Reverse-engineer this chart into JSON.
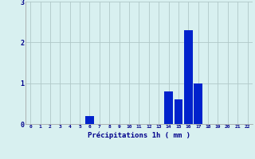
{
  "hours": [
    0,
    1,
    2,
    3,
    4,
    5,
    6,
    7,
    8,
    9,
    10,
    11,
    12,
    13,
    14,
    15,
    16,
    17,
    18,
    19,
    20,
    21,
    22
  ],
  "values": [
    0,
    0,
    0,
    0,
    0,
    0,
    0.2,
    0,
    0,
    0,
    0,
    0,
    0,
    0,
    0.8,
    0.6,
    2.3,
    1.0,
    0,
    0,
    0,
    0,
    0
  ],
  "bar_color": "#0022cc",
  "background_color": "#d8f0f0",
  "grid_color": "#b0c8c8",
  "xlabel": "Précipitations 1h ( mm )",
  "xlabel_color": "#00008b",
  "tick_color": "#00008b",
  "ylim": [
    0,
    3
  ],
  "yticks": [
    0,
    1,
    2,
    3
  ],
  "xlim": [
    -0.5,
    22.5
  ],
  "figsize": [
    3.2,
    2.0
  ],
  "dpi": 100
}
